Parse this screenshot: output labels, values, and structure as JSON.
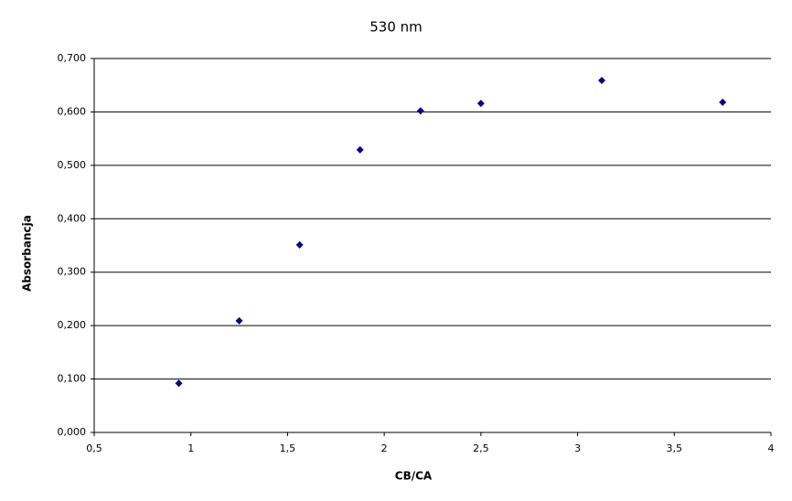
{
  "chart_data": {
    "type": "scatter",
    "title": "530 nm",
    "x_label": "CB/CA",
    "y_label": "Absorbancja",
    "x": [
      0.9375,
      1.25,
      1.5625,
      1.875,
      2.1875,
      2.5,
      3.125,
      3.75
    ],
    "values": [
      0.092,
      0.209,
      0.351,
      0.529,
      0.602,
      0.616,
      0.659,
      0.618
    ],
    "color": "#000080",
    "xlim": [
      0.5,
      4
    ],
    "xticks": [
      {
        "value": 0.5,
        "label": "0,5"
      },
      1,
      {
        "value": 1.5,
        "label": "1,5"
      },
      2,
      {
        "value": 2.5,
        "label": "2,5"
      },
      3,
      {
        "value": 3.5,
        "label": "3,5"
      },
      4
    ],
    "ylim": [
      0,
      0.7
    ],
    "yticks": [
      {
        "value": 0,
        "label": "0,000"
      },
      {
        "value": 0.1,
        "label": "0,100"
      },
      {
        "value": 0.2,
        "label": "0,200"
      },
      {
        "value": 0.3,
        "label": "0,300"
      },
      {
        "value": 0.4,
        "label": "0,400"
      },
      {
        "value": 0.5,
        "label": "0,500"
      },
      {
        "value": 0.6,
        "label": "0,600"
      },
      {
        "value": 0.7,
        "label": "0,700"
      }
    ],
    "grid": true
  }
}
